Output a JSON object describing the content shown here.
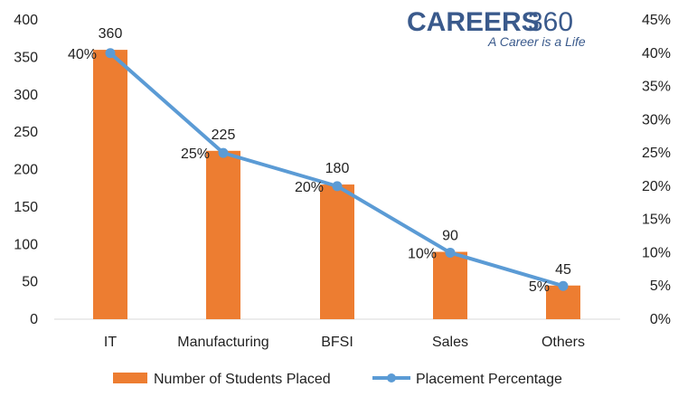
{
  "logo": {
    "brand": "CAREERS",
    "number": "360",
    "tagline": "A Career is a Life"
  },
  "chart_data": {
    "type": "bar",
    "categories": [
      "IT",
      "Manufacturing",
      "BFSI",
      "Sales",
      "Others"
    ],
    "series": [
      {
        "name": "Number of Students Placed",
        "type": "bar",
        "axis": "left",
        "values": [
          360,
          225,
          180,
          90,
          45
        ],
        "color": "#ed7d31"
      },
      {
        "name": "Placement Percentage",
        "type": "line",
        "axis": "right",
        "values": [
          40,
          25,
          20,
          10,
          5
        ],
        "color": "#5b9bd5"
      }
    ],
    "bar_labels": [
      "360",
      "225",
      "180",
      "90",
      "45"
    ],
    "line_labels": [
      "40%",
      "25%",
      "20%",
      "10%",
      "5%"
    ],
    "y_left": {
      "lim": [
        0,
        400
      ],
      "ticks": [
        "0",
        "50",
        "100",
        "150",
        "200",
        "250",
        "300",
        "350",
        "400"
      ]
    },
    "y_right": {
      "lim": [
        0,
        45
      ],
      "ticks": [
        "0%",
        "5%",
        "10%",
        "15%",
        "20%",
        "25%",
        "30%",
        "35%",
        "40%",
        "45%"
      ]
    },
    "grid": false,
    "legend": "bottom"
  }
}
